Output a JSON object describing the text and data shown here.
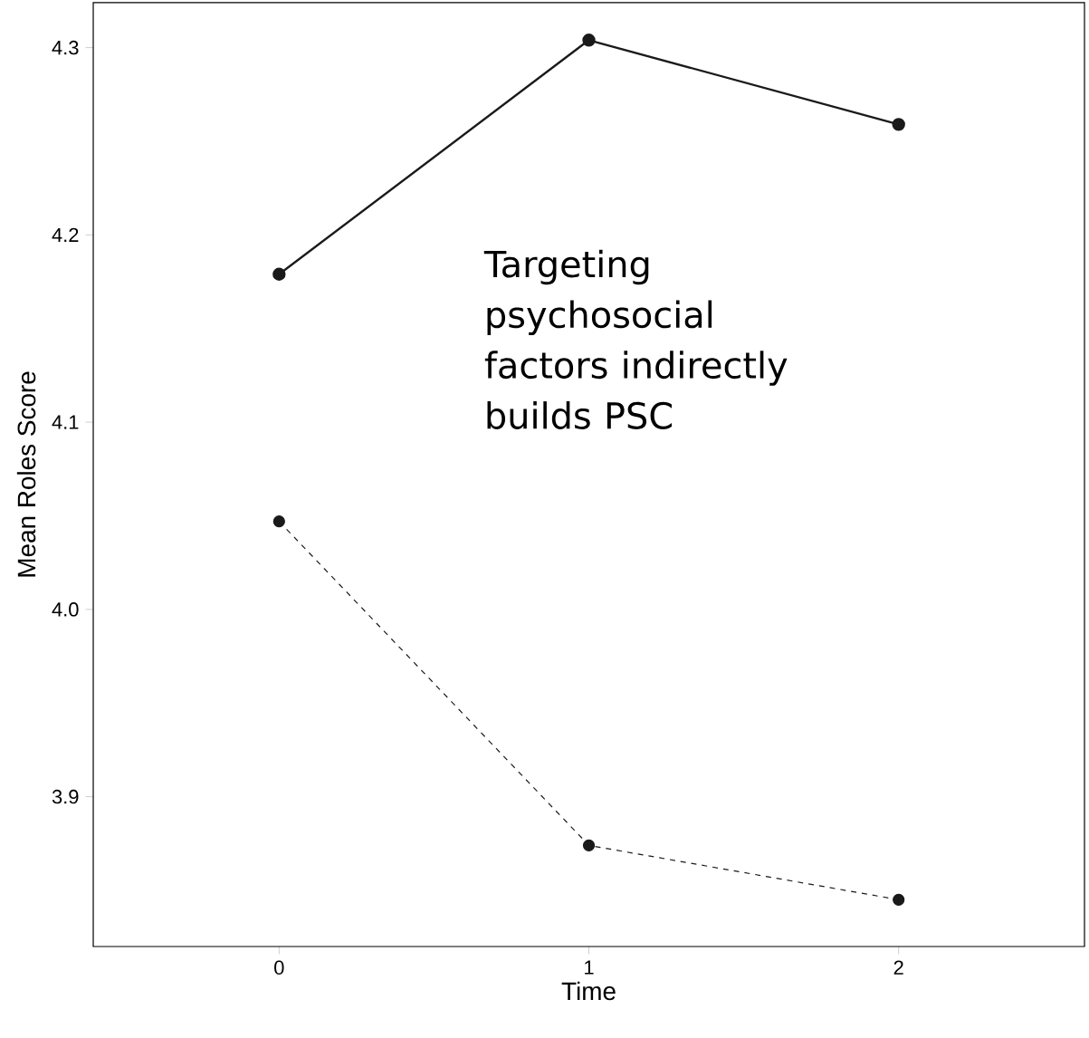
{
  "chart_data": {
    "type": "line",
    "xlabel": "Time",
    "ylabel": "Mean Roles Score",
    "x": [
      0,
      1,
      2
    ],
    "series": [
      {
        "color": "#1a1a1a",
        "values": [
          4.179,
          4.304,
          4.259
        ],
        "line_style": "solid"
      },
      {
        "color": "#1a1a1a",
        "values": [
          4.047,
          3.874,
          3.845
        ],
        "line_style": "dashed"
      }
    ],
    "xlim": [
      -0.6,
      2.6
    ],
    "xticks": [
      0,
      1,
      2
    ],
    "ylim": [
      3.82,
      4.324
    ],
    "yticks": [
      3.9,
      {
        "value": 4,
        "label": "4.0"
      },
      4.1,
      4.2,
      4.3
    ],
    "marker": "circle",
    "grid": false,
    "annotations": [
      "Targeting psychosocial factors indirectly builds PSC"
    ]
  }
}
